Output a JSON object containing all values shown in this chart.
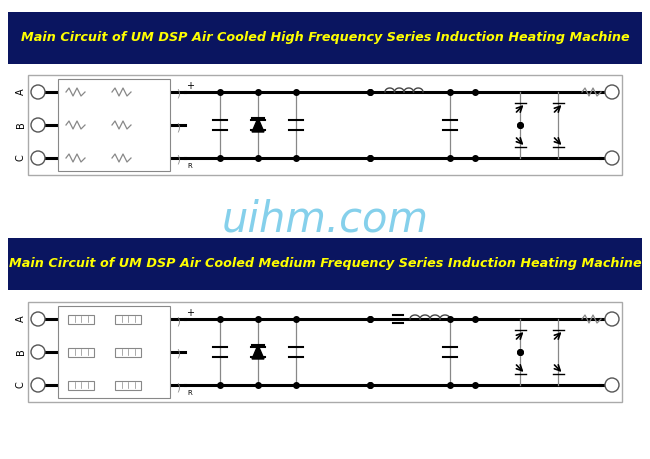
{
  "bg_color": "#ffffff",
  "banner_color": "#0a1560",
  "title1": "Main Circuit of UM DSP Air Cooled High Frequency Series Induction Heating Machine",
  "title2": "Main Circuit of UM DSP Air Cooled Medium Frequency Series Induction Heating Machine",
  "title_color": "#ffff00",
  "title_fontsize": 9.2,
  "watermark": "uihm.com",
  "watermark_color": "#70c8e8",
  "watermark_alpha": 0.85,
  "watermark_fontsize": 30,
  "outer_box_color": "#aaaaaa",
  "line_color_thick": "#000000",
  "line_color_thin": "#888888",
  "lw_thick": 2.2,
  "lw_thin": 0.9
}
